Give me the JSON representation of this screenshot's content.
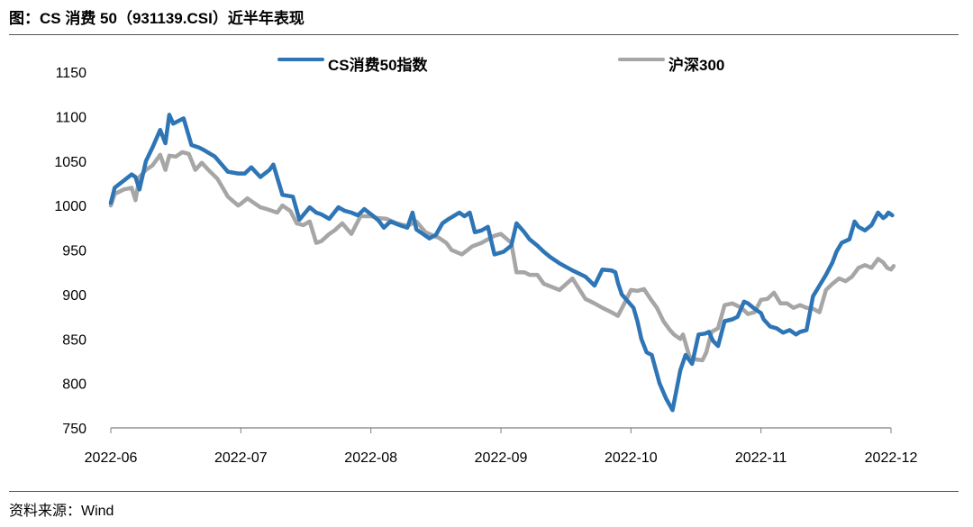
{
  "figure": {
    "title": "图：CS 消费 50（931139.CSI）近半年表现",
    "source": "资料来源：Wind"
  },
  "chart_data": {
    "type": "line",
    "title": "CS 消费 50（931139.CSI）近半年表现",
    "xlabel": "",
    "ylabel": "",
    "ylim": [
      750,
      1150
    ],
    "yticks": [
      "750",
      "800",
      "850",
      "900",
      "950",
      "1000",
      "1050",
      "1100",
      "1150"
    ],
    "xlim": [
      0,
      6
    ],
    "xticks": [
      "2022-06",
      "2022-07",
      "2022-08",
      "2022-09",
      "2022-10",
      "2022-11",
      "2022-12"
    ],
    "grid": false,
    "legend_position": "top",
    "series": [
      {
        "name": "CS消费50指数",
        "color": "#2e75b6",
        "x": [
          0,
          0.03,
          0.1,
          0.16,
          0.19,
          0.22,
          0.27,
          0.32,
          0.38,
          0.42,
          0.45,
          0.48,
          0.52,
          0.56,
          0.62,
          0.68,
          0.72,
          0.8,
          0.9,
          0.98,
          1.0,
          1.03,
          1.08,
          1.15,
          1.22,
          1.25,
          1.32,
          1.4,
          1.45,
          1.53,
          1.58,
          1.62,
          1.68,
          1.75,
          1.8,
          1.85,
          1.9,
          1.95,
          2.02,
          2.06,
          2.1,
          2.15,
          2.22,
          2.28,
          2.32,
          2.35,
          2.4,
          2.45,
          2.5,
          2.55,
          2.6,
          2.68,
          2.72,
          2.76,
          2.8,
          2.85,
          2.9,
          2.95,
          3.02,
          3.08,
          3.12,
          3.18,
          3.22,
          3.28,
          3.33,
          3.38,
          3.45,
          3.55,
          3.65,
          3.72,
          3.78,
          3.85,
          3.88,
          3.9,
          3.93,
          4.02,
          4.05,
          4.08,
          4.12,
          4.16,
          4.22,
          4.27,
          4.32,
          4.38,
          4.42,
          4.47,
          4.52,
          4.57,
          4.6,
          4.63,
          4.67,
          4.72,
          4.78,
          4.82,
          4.87,
          4.9,
          4.95,
          5.0,
          5.02,
          5.07,
          5.12,
          5.17,
          5.22,
          5.27,
          5.3,
          5.35,
          5.4,
          5.45,
          5.5,
          5.55,
          5.58,
          5.62,
          5.68,
          5.72,
          5.75,
          5.8,
          5.85,
          5.9,
          5.94,
          5.96,
          5.98,
          6.01
        ],
        "values": [
          1003,
          1020,
          1028,
          1035,
          1032,
          1018,
          1050,
          1065,
          1085,
          1070,
          1102,
          1092,
          1095,
          1098,
          1068,
          1065,
          1062,
          1055,
          1038,
          1036,
          1036,
          1036,
          1043,
          1032,
          1040,
          1046,
          1012,
          1010,
          984,
          998,
          992,
          990,
          985,
          998,
          994,
          992,
          989,
          996,
          988,
          983,
          975,
          982,
          978,
          975,
          992,
          973,
          968,
          963,
          967,
          980,
          985,
          992,
          988,
          992,
          970,
          972,
          976,
          945,
          948,
          955,
          980,
          970,
          962,
          955,
          948,
          942,
          935,
          927,
          920,
          910,
          928,
          927,
          925,
          913,
          900,
          885,
          870,
          850,
          835,
          832,
          800,
          783,
          770,
          815,
          832,
          822,
          855,
          856,
          858,
          848,
          842,
          870,
          872,
          875,
          892,
          890,
          884,
          879,
          872,
          864,
          862,
          857,
          860,
          855,
          858,
          860,
          898,
          910,
          922,
          936,
          948,
          958,
          962,
          982,
          976,
          972,
          978,
          992,
          986,
          988,
          992,
          989
        ]
      },
      {
        "name": "沪深300",
        "color": "#a6a6a6",
        "x": [
          0,
          0.03,
          0.1,
          0.16,
          0.19,
          0.22,
          0.27,
          0.32,
          0.38,
          0.42,
          0.45,
          0.5,
          0.55,
          0.6,
          0.65,
          0.7,
          0.75,
          0.82,
          0.9,
          0.98,
          1.0,
          1.05,
          1.1,
          1.15,
          1.2,
          1.28,
          1.32,
          1.38,
          1.43,
          1.48,
          1.53,
          1.58,
          1.62,
          1.68,
          1.72,
          1.78,
          1.85,
          1.92,
          2.0,
          2.05,
          2.12,
          2.2,
          2.28,
          2.35,
          2.42,
          2.48,
          2.52,
          2.58,
          2.62,
          2.7,
          2.78,
          2.85,
          2.9,
          2.95,
          3.0,
          3.08,
          3.12,
          3.18,
          3.22,
          3.28,
          3.33,
          3.45,
          3.55,
          3.65,
          3.72,
          3.78,
          3.85,
          3.9,
          3.95,
          4.0,
          4.05,
          4.1,
          4.15,
          4.2,
          4.25,
          4.3,
          4.33,
          4.38,
          4.4,
          4.45,
          4.5,
          4.55,
          4.58,
          4.62,
          4.67,
          4.72,
          4.78,
          4.85,
          4.9,
          4.95,
          5.0,
          5.05,
          5.1,
          5.15,
          5.2,
          5.25,
          5.3,
          5.35,
          5.4,
          5.45,
          5.5,
          5.55,
          5.6,
          5.65,
          5.7,
          5.75,
          5.8,
          5.85,
          5.9,
          5.94,
          5.97,
          6.0,
          6.02
        ],
        "values": [
          1000,
          1013,
          1018,
          1020,
          1006,
          1032,
          1040,
          1045,
          1057,
          1040,
          1056,
          1055,
          1060,
          1058,
          1040,
          1048,
          1040,
          1030,
          1010,
          1000,
          1002,
          1008,
          1003,
          998,
          996,
          992,
          1000,
          994,
          980,
          978,
          982,
          958,
          960,
          968,
          972,
          980,
          968,
          988,
          988,
          986,
          985,
          980,
          977,
          982,
          970,
          966,
          964,
          958,
          950,
          945,
          954,
          958,
          962,
          966,
          968,
          958,
          925,
          925,
          922,
          922,
          912,
          905,
          918,
          895,
          890,
          885,
          880,
          876,
          890,
          905,
          904,
          906,
          895,
          885,
          870,
          860,
          855,
          850,
          855,
          830,
          827,
          826,
          835,
          858,
          862,
          888,
          890,
          885,
          878,
          880,
          894,
          895,
          902,
          890,
          890,
          885,
          888,
          885,
          884,
          880,
          905,
          912,
          918,
          915,
          920,
          930,
          933,
          930,
          940,
          936,
          930,
          928,
          932
        ]
      }
    ]
  }
}
